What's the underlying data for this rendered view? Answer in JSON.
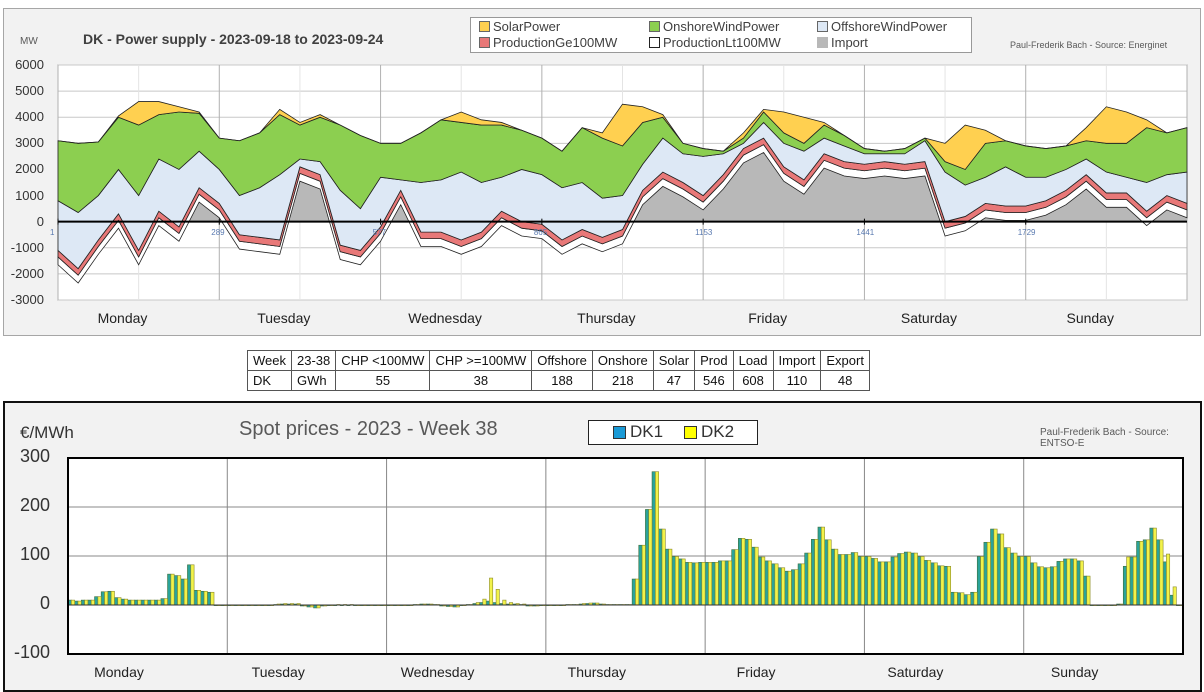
{
  "chart_data": [
    {
      "type": "area",
      "stacked": true,
      "title": "DK - Power supply - 2023-09-18 to 2023-09-24",
      "ylabel": "MW",
      "source": "Paul-Frederik Bach - Source: Energinet",
      "ylim": [
        -3000,
        6000
      ],
      "yticks": [
        6000,
        5000,
        4000,
        3000,
        2000,
        1000,
        0,
        -1000,
        -2000,
        -3000
      ],
      "xlim": [
        1,
        2017
      ],
      "xticks": [
        "1",
        "289",
        "577",
        "865",
        "1153",
        "1441",
        "1729"
      ],
      "day_labels": [
        "Monday",
        "Tuesday",
        "Wednesday",
        "Thursday",
        "Friday",
        "Saturday",
        "Sunday"
      ],
      "x_step": 36,
      "series": [
        {
          "name": "Import",
          "color": "#b8b8b8",
          "values": [
            -1650,
            -2350,
            -1250,
            -250,
            -1650,
            -150,
            -750,
            750,
            150,
            -1050,
            -1150,
            -1250,
            1550,
            1250,
            -1450,
            -1650,
            -750,
            650,
            -950,
            -950,
            -1250,
            -950,
            -150,
            -550,
            -650,
            -1250,
            -850,
            -1150,
            -850,
            650,
            1350,
            950,
            450,
            1250,
            2250,
            2650,
            1550,
            1050,
            2050,
            1750,
            1650,
            1750,
            1650,
            1750,
            -550,
            -350,
            150,
            50,
            50,
            250,
            650,
            1250,
            550,
            550,
            -150,
            450,
            150
          ]
        },
        {
          "name": "ProductionLt100MW",
          "color": "#ffffff",
          "values": [
            300,
            300,
            300,
            300,
            300,
            300,
            300,
            300,
            300,
            300,
            300,
            300,
            300,
            300,
            300,
            300,
            300,
            300,
            300,
            300,
            300,
            300,
            300,
            300,
            300,
            300,
            300,
            300,
            300,
            300,
            300,
            300,
            300,
            300,
            300,
            300,
            300,
            300,
            300,
            300,
            300,
            300,
            300,
            300,
            300,
            300,
            300,
            300,
            300,
            300,
            300,
            300,
            300,
            300,
            300,
            300,
            300
          ]
        },
        {
          "name": "ProductionGe100MW",
          "color": "#e87878",
          "values": [
            250,
            250,
            250,
            250,
            250,
            250,
            250,
            250,
            250,
            250,
            250,
            250,
            250,
            250,
            250,
            250,
            250,
            250,
            250,
            250,
            250,
            250,
            250,
            250,
            250,
            250,
            250,
            250,
            250,
            250,
            250,
            250,
            250,
            250,
            250,
            250,
            250,
            250,
            250,
            250,
            250,
            250,
            250,
            250,
            250,
            250,
            250,
            250,
            250,
            250,
            250,
            250,
            250,
            250,
            250,
            250,
            250
          ]
        },
        {
          "name": "OffshoreWindPower",
          "color": "#dde8f5",
          "values": [
            1900,
            2150,
            1700,
            1700,
            2100,
            2000,
            2200,
            1400,
            1300,
            1500,
            1900,
            2500,
            300,
            500,
            2100,
            1600,
            1900,
            400,
            1900,
            2000,
            2600,
            1900,
            1300,
            2000,
            1900,
            2000,
            1800,
            1500,
            1300,
            1000,
            1300,
            1100,
            1500,
            800,
            200,
            600,
            900,
            1100,
            600,
            600,
            400,
            300,
            400,
            800,
            1900,
            1200,
            1000,
            1500,
            1100,
            900,
            800,
            600,
            800,
            600,
            1100,
            800,
            1200
          ]
        },
        {
          "name": "OnshoreWindPower",
          "color": "#8ccf50",
          "values": [
            2300,
            2650,
            2050,
            2000,
            2700,
            1700,
            2200,
            1450,
            1200,
            2100,
            2100,
            2300,
            1300,
            1700,
            2500,
            2800,
            1300,
            1400,
            1900,
            2300,
            1900,
            2200,
            2000,
            1500,
            1400,
            1400,
            2100,
            2300,
            1900,
            1600,
            800,
            400,
            300,
            100,
            200,
            400,
            400,
            300,
            500,
            400,
            200,
            100,
            200,
            100,
            400,
            600,
            1300,
            1000,
            1200,
            1100,
            900,
            700,
            1100,
            1300,
            2100,
            1600,
            1700
          ]
        },
        {
          "name": "SolarPower",
          "color": "#ffd050",
          "values": [
            0,
            0,
            0,
            50,
            900,
            500,
            200,
            50,
            0,
            0,
            0,
            200,
            100,
            100,
            0,
            0,
            0,
            0,
            0,
            0,
            400,
            200,
            100,
            0,
            0,
            0,
            0,
            200,
            1600,
            600,
            100,
            0,
            0,
            0,
            200,
            100,
            800,
            1000,
            100,
            0,
            0,
            0,
            0,
            0,
            700,
            1700,
            500,
            0,
            0,
            0,
            0,
            500,
            1400,
            1200,
            300,
            0,
            0
          ]
        }
      ],
      "legend": [
        "SolarPower",
        "OnshoreWindPower",
        "OffshoreWindPower",
        "ProductionGe100MW",
        "ProductionLt100MW",
        "Import"
      ]
    },
    {
      "type": "table",
      "headers": [
        "Week",
        "23-38",
        "CHP <100MW",
        "CHP >=100MW",
        "Offshore",
        "Onshore",
        "Solar",
        "Prod",
        "Load",
        "Import",
        "Export"
      ],
      "rows": [
        [
          "DK",
          "GWh",
          "55",
          "38",
          "188",
          "218",
          "47",
          "546",
          "608",
          "110",
          "48"
        ]
      ]
    },
    {
      "type": "bar",
      "title": "Spot prices - 2023 - Week 38",
      "ylabel": "€/MWh",
      "source": "Paul-Frederik Bach - Source: ENTSO-E",
      "ylim": [
        -100,
        300
      ],
      "yticks": [
        "300",
        "200",
        "100",
        "0",
        "-100"
      ],
      "day_labels": [
        "Monday",
        "Tuesday",
        "Wednesday",
        "Thursday",
        "Friday",
        "Saturday",
        "Sunday"
      ],
      "series": [
        {
          "name": "DK1",
          "color": "#2aa39a",
          "legend_color": "#1a9ad6",
          "values": [
            10,
            8,
            10,
            10,
            17,
            27,
            28,
            15,
            12,
            10,
            10,
            10,
            10,
            10,
            13,
            63,
            60,
            53,
            82,
            30,
            28,
            26,
            -1,
            -1,
            -1,
            -1,
            -1,
            -1,
            -1,
            -1,
            -1,
            1,
            2,
            2,
            2,
            -2,
            -4,
            -6,
            -2,
            -1,
            0,
            0,
            0,
            -1,
            -1,
            -1,
            -1,
            -1,
            0,
            0,
            0,
            0,
            1,
            2,
            2,
            1,
            -2,
            -3,
            -4,
            -1,
            1,
            3,
            5,
            8,
            5,
            3,
            2,
            2,
            1,
            -2,
            -2,
            0,
            0,
            0,
            0,
            1,
            1,
            2,
            3,
            4,
            2,
            1,
            1,
            1,
            1,
            53,
            122,
            195,
            272,
            155,
            114,
            99,
            94,
            87,
            86,
            87,
            87,
            87,
            90,
            90,
            113,
            136,
            134,
            118,
            98,
            90,
            84,
            76,
            69,
            72,
            84,
            106,
            134,
            159,
            133,
            114,
            103,
            103,
            107,
            99,
            99,
            95,
            88,
            88,
            98,
            105,
            108,
            106,
            99,
            91,
            86,
            80,
            79,
            26,
            25,
            21,
            26,
            99,
            128,
            155,
            145,
            117,
            106,
            99,
            99,
            86,
            78,
            76,
            78,
            89,
            94,
            94,
            90,
            59,
            -1,
            -1,
            -1,
            -1,
            2,
            79,
            98,
            130,
            133,
            157,
            133,
            88,
            20,
            0
          ]
        },
        {
          "name": "DK2",
          "color": "#f2f24a",
          "legend_color": "#ffff00",
          "values": [
            10,
            8,
            10,
            10,
            17,
            27,
            28,
            15,
            12,
            10,
            10,
            10,
            10,
            10,
            13,
            63,
            60,
            53,
            82,
            30,
            28,
            26,
            -1,
            -1,
            -1,
            -1,
            -1,
            -1,
            -1,
            -1,
            -1,
            2,
            3,
            3,
            3,
            -2,
            -4,
            -6,
            -2,
            -1,
            1,
            1,
            1,
            -1,
            -1,
            -1,
            -1,
            -1,
            0,
            0,
            0,
            0,
            1,
            2,
            2,
            1,
            -2,
            -3,
            -4,
            -1,
            1,
            5,
            12,
            55,
            32,
            10,
            5,
            3,
            2,
            -2,
            -2,
            0,
            0,
            0,
            0,
            1,
            1,
            3,
            4,
            4,
            2,
            1,
            1,
            1,
            1,
            53,
            122,
            195,
            272,
            155,
            114,
            99,
            94,
            87,
            86,
            87,
            87,
            87,
            90,
            90,
            113,
            136,
            134,
            118,
            98,
            90,
            84,
            76,
            69,
            72,
            84,
            106,
            134,
            159,
            133,
            114,
            103,
            103,
            107,
            99,
            99,
            95,
            88,
            88,
            98,
            105,
            108,
            106,
            99,
            91,
            86,
            80,
            79,
            26,
            25,
            21,
            26,
            99,
            128,
            155,
            145,
            117,
            106,
            99,
            99,
            86,
            78,
            76,
            78,
            89,
            94,
            94,
            90,
            59,
            -1,
            -1,
            -1,
            -1,
            2,
            98,
            98,
            130,
            133,
            157,
            133,
            104,
            37,
            0
          ]
        }
      ]
    }
  ]
}
